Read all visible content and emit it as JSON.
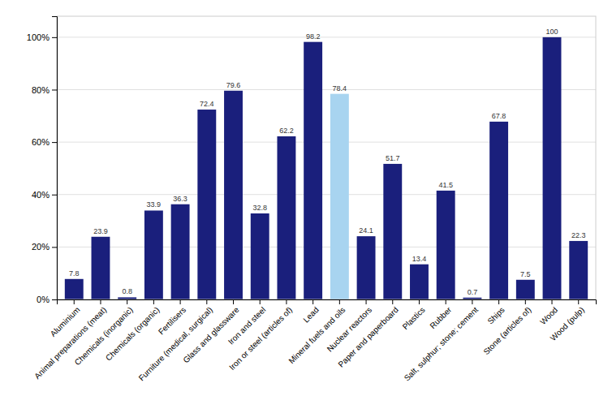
{
  "chart_data": {
    "type": "bar",
    "categories": [
      "Aluminium",
      "Animal preparations (meat)",
      "Chemicals (inorganic)",
      "Chemicals (organic)",
      "Fertilisers",
      "Furniture (medical, surgical)",
      "Glass and glassware",
      "Iron and steel",
      "Iron or steel (articles of)",
      "Lead",
      "Mineral fuels and oils",
      "Nuclear reactors",
      "Paper and paperboard",
      "Plastics",
      "Rubber",
      "Salt, sulphur; stone; cement",
      "Ships",
      "Stone (articles of)",
      "Wood",
      "Wood (pulp)"
    ],
    "values": [
      7.8,
      23.9,
      0.8,
      33.9,
      36.3,
      72.4,
      79.6,
      32.8,
      62.2,
      98.2,
      78.4,
      24.1,
      51.7,
      13.4,
      41.5,
      0.7,
      67.8,
      7.5,
      100,
      22.3
    ],
    "colors": [
      "#1a1f7c",
      "#1a1f7c",
      "#1a1f7c",
      "#1a1f7c",
      "#1a1f7c",
      "#1a1f7c",
      "#1a1f7c",
      "#1a1f7c",
      "#1a1f7c",
      "#1a1f7c",
      "#a8d4f0",
      "#1a1f7c",
      "#1a1f7c",
      "#1a1f7c",
      "#1a1f7c",
      "#1a1f7c",
      "#1a1f7c",
      "#1a1f7c",
      "#1a1f7c",
      "#1a1f7c"
    ],
    "ylim": [
      0,
      108
    ],
    "yticks": [
      {
        "value": 0,
        "label": "0%"
      },
      {
        "value": 20,
        "label": "20%"
      },
      {
        "value": 40,
        "label": "40%"
      },
      {
        "value": 60,
        "label": "60%"
      },
      {
        "value": 80,
        "label": "80%"
      },
      {
        "value": 100,
        "label": "100%"
      }
    ],
    "grid": true,
    "data_labels": true
  }
}
